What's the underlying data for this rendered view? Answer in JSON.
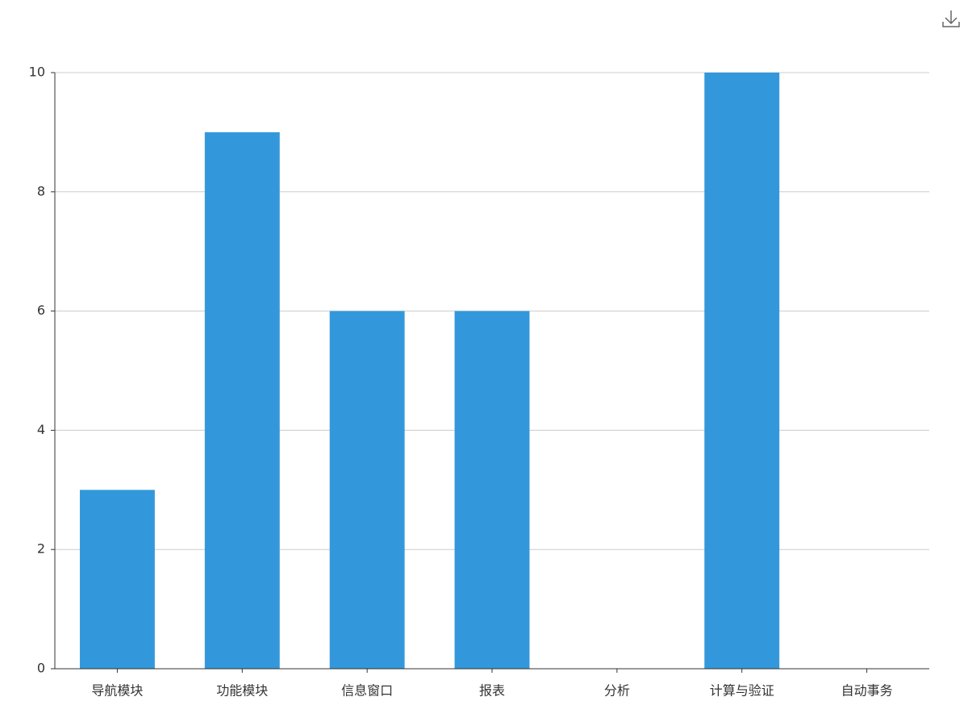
{
  "chart_data": {
    "type": "bar",
    "categories": [
      "导航模块",
      "功能模块",
      "信息窗口",
      "报表",
      "分析",
      "计算与验证",
      "自动事务"
    ],
    "values": [
      3,
      9,
      6,
      6,
      0,
      10,
      0
    ],
    "color": "#3398db",
    "ylim": [
      0,
      10
    ],
    "yticks": [
      0,
      2,
      4,
      6,
      8,
      10
    ],
    "grid": true
  }
}
